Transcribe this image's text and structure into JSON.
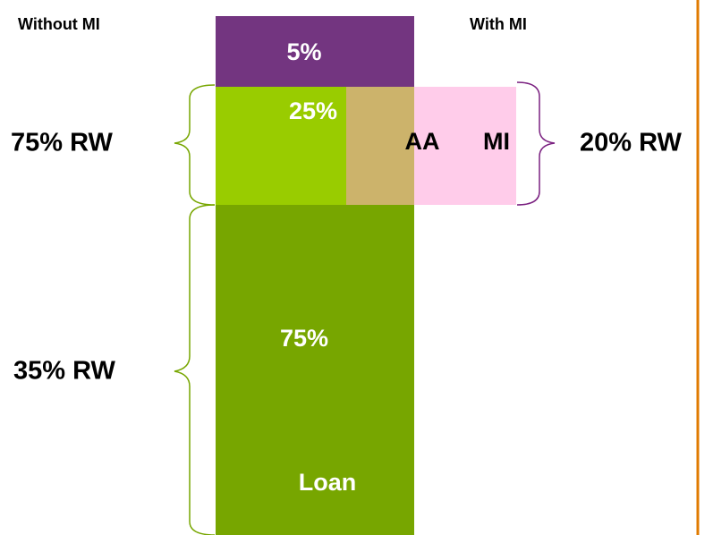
{
  "header": {
    "left": "Without MI",
    "right": "With MI"
  },
  "blocks": {
    "top": "5%",
    "middle": "25%",
    "aa": "AA",
    "mi": "MI",
    "bottom": "75%",
    "loan": "Loan"
  },
  "braces": {
    "left_upper": "75% RW",
    "left_lower": "35% RW",
    "right": "20% RW"
  }
}
